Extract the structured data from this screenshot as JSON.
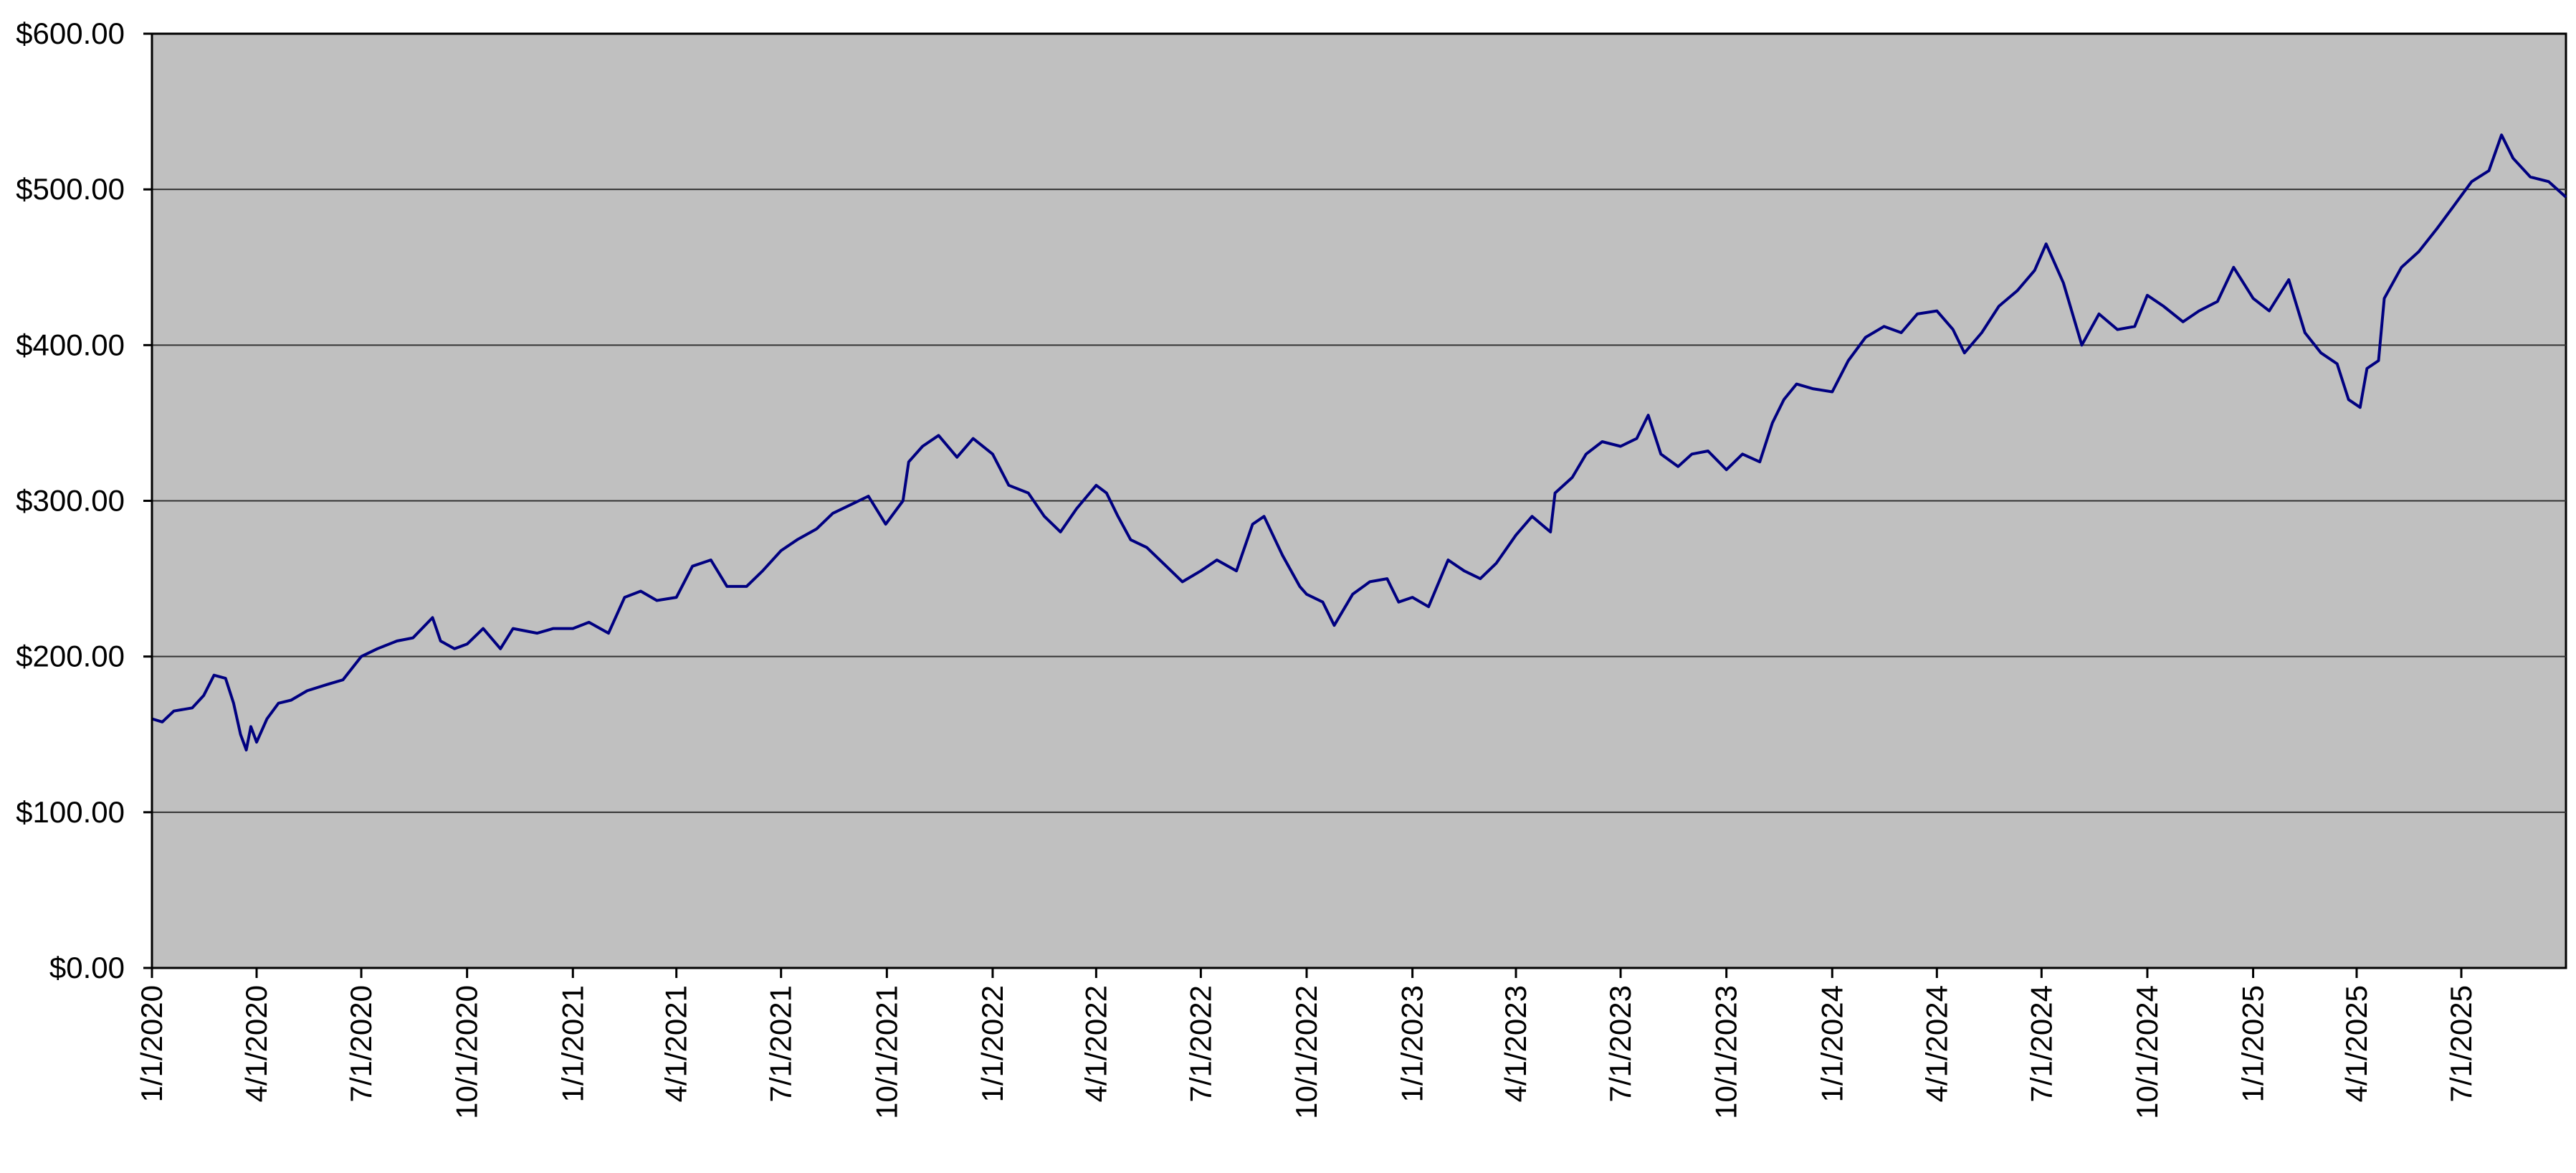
{
  "chart_data": {
    "type": "line",
    "title": "",
    "xlabel": "",
    "ylabel": "",
    "x_axis_type": "date",
    "xlim": [
      "2020-01-01",
      "2025-09-30"
    ],
    "ylim": [
      0,
      600
    ],
    "y_ticks": [
      0,
      100,
      200,
      300,
      400,
      500,
      600
    ],
    "y_tick_labels": [
      "$0.00",
      "$100.00",
      "$200.00",
      "$300.00",
      "$400.00",
      "$500.00",
      "$600.00"
    ],
    "x_tick_dates": [
      "2020-01-01",
      "2020-04-01",
      "2020-07-01",
      "2020-10-01",
      "2021-01-01",
      "2021-04-01",
      "2021-07-01",
      "2021-10-01",
      "2022-01-01",
      "2022-04-01",
      "2022-07-01",
      "2022-10-01",
      "2023-01-01",
      "2023-04-01",
      "2023-07-01",
      "2023-10-01",
      "2024-01-01",
      "2024-04-01",
      "2024-07-01",
      "2024-10-01",
      "2025-01-01",
      "2025-04-01",
      "2025-07-01"
    ],
    "x_tick_labels": [
      "1/1/2020",
      "4/1/2020",
      "7/1/2020",
      "10/1/2020",
      "1/1/2021",
      "4/1/2021",
      "7/1/2021",
      "10/1/2021",
      "1/1/2022",
      "4/1/2022",
      "7/1/2022",
      "10/1/2022",
      "1/1/2023",
      "4/1/2023",
      "7/1/2023",
      "10/1/2023",
      "1/1/2024",
      "4/1/2024",
      "7/1/2024",
      "10/1/2024",
      "1/1/2025",
      "4/1/2025",
      "7/1/2025"
    ],
    "grid": true,
    "legend": false,
    "colors": {
      "plot_background": "#c0c0c0",
      "line": "#000080",
      "gridline": "#333333",
      "axis": "#000000"
    },
    "series": [
      {
        "points": [
          [
            "2020-01-01",
            160
          ],
          [
            "2020-01-10",
            158
          ],
          [
            "2020-01-20",
            165
          ],
          [
            "2020-02-05",
            167
          ],
          [
            "2020-02-15",
            175
          ],
          [
            "2020-02-24",
            188
          ],
          [
            "2020-03-05",
            186
          ],
          [
            "2020-03-12",
            170
          ],
          [
            "2020-03-18",
            150
          ],
          [
            "2020-03-23",
            140
          ],
          [
            "2020-03-27",
            155
          ],
          [
            "2020-04-01",
            145
          ],
          [
            "2020-04-10",
            160
          ],
          [
            "2020-04-20",
            170
          ],
          [
            "2020-05-01",
            172
          ],
          [
            "2020-05-15",
            178
          ],
          [
            "2020-06-01",
            182
          ],
          [
            "2020-06-15",
            185
          ],
          [
            "2020-07-01",
            200
          ],
          [
            "2020-07-15",
            205
          ],
          [
            "2020-08-01",
            210
          ],
          [
            "2020-08-15",
            212
          ],
          [
            "2020-09-01",
            225
          ],
          [
            "2020-09-08",
            210
          ],
          [
            "2020-09-20",
            205
          ],
          [
            "2020-10-01",
            208
          ],
          [
            "2020-10-15",
            218
          ],
          [
            "2020-10-30",
            205
          ],
          [
            "2020-11-10",
            218
          ],
          [
            "2020-12-01",
            215
          ],
          [
            "2020-12-15",
            218
          ],
          [
            "2021-01-01",
            218
          ],
          [
            "2021-01-15",
            222
          ],
          [
            "2021-02-01",
            215
          ],
          [
            "2021-02-15",
            238
          ],
          [
            "2021-03-01",
            242
          ],
          [
            "2021-03-15",
            236
          ],
          [
            "2021-04-01",
            238
          ],
          [
            "2021-04-15",
            258
          ],
          [
            "2021-05-01",
            262
          ],
          [
            "2021-05-15",
            245
          ],
          [
            "2021-06-01",
            245
          ],
          [
            "2021-06-15",
            255
          ],
          [
            "2021-07-01",
            268
          ],
          [
            "2021-07-15",
            275
          ],
          [
            "2021-08-01",
            282
          ],
          [
            "2021-08-15",
            292
          ],
          [
            "2021-09-01",
            298
          ],
          [
            "2021-09-15",
            303
          ],
          [
            "2021-09-30",
            285
          ],
          [
            "2021-10-15",
            300
          ],
          [
            "2021-10-20",
            325
          ],
          [
            "2021-11-01",
            335
          ],
          [
            "2021-11-15",
            342
          ],
          [
            "2021-12-01",
            328
          ],
          [
            "2021-12-15",
            340
          ],
          [
            "2022-01-01",
            330
          ],
          [
            "2022-01-15",
            310
          ],
          [
            "2022-02-01",
            305
          ],
          [
            "2022-02-15",
            290
          ],
          [
            "2022-03-01",
            280
          ],
          [
            "2022-03-15",
            295
          ],
          [
            "2022-04-01",
            310
          ],
          [
            "2022-04-10",
            305
          ],
          [
            "2022-04-20",
            290
          ],
          [
            "2022-05-01",
            275
          ],
          [
            "2022-05-15",
            270
          ],
          [
            "2022-06-01",
            258
          ],
          [
            "2022-06-15",
            248
          ],
          [
            "2022-07-01",
            255
          ],
          [
            "2022-07-15",
            262
          ],
          [
            "2022-08-01",
            255
          ],
          [
            "2022-08-15",
            285
          ],
          [
            "2022-08-25",
            290
          ],
          [
            "2022-09-10",
            265
          ],
          [
            "2022-09-25",
            245
          ],
          [
            "2022-10-01",
            240
          ],
          [
            "2022-10-15",
            235
          ],
          [
            "2022-10-25",
            220
          ],
          [
            "2022-11-10",
            240
          ],
          [
            "2022-11-25",
            248
          ],
          [
            "2022-12-10",
            250
          ],
          [
            "2022-12-20",
            235
          ],
          [
            "2023-01-01",
            238
          ],
          [
            "2023-01-15",
            232
          ],
          [
            "2023-02-01",
            262
          ],
          [
            "2023-02-15",
            255
          ],
          [
            "2023-03-01",
            250
          ],
          [
            "2023-03-15",
            260
          ],
          [
            "2023-04-01",
            278
          ],
          [
            "2023-04-15",
            290
          ],
          [
            "2023-05-01",
            280
          ],
          [
            "2023-05-05",
            305
          ],
          [
            "2023-05-20",
            315
          ],
          [
            "2023-06-01",
            330
          ],
          [
            "2023-06-15",
            338
          ],
          [
            "2023-07-01",
            335
          ],
          [
            "2023-07-15",
            340
          ],
          [
            "2023-07-25",
            355
          ],
          [
            "2023-08-05",
            330
          ],
          [
            "2023-08-20",
            322
          ],
          [
            "2023-09-01",
            330
          ],
          [
            "2023-09-15",
            332
          ],
          [
            "2023-10-01",
            320
          ],
          [
            "2023-10-15",
            330
          ],
          [
            "2023-10-30",
            325
          ],
          [
            "2023-11-10",
            350
          ],
          [
            "2023-11-20",
            365
          ],
          [
            "2023-12-01",
            375
          ],
          [
            "2023-12-15",
            372
          ],
          [
            "2024-01-01",
            370
          ],
          [
            "2024-01-15",
            390
          ],
          [
            "2024-01-30",
            405
          ],
          [
            "2024-02-15",
            412
          ],
          [
            "2024-03-01",
            408
          ],
          [
            "2024-03-15",
            420
          ],
          [
            "2024-04-01",
            422
          ],
          [
            "2024-04-15",
            410
          ],
          [
            "2024-04-25",
            395
          ],
          [
            "2024-05-10",
            408
          ],
          [
            "2024-05-25",
            425
          ],
          [
            "2024-06-10",
            435
          ],
          [
            "2024-06-25",
            448
          ],
          [
            "2024-07-05",
            465
          ],
          [
            "2024-07-20",
            440
          ],
          [
            "2024-08-05",
            400
          ],
          [
            "2024-08-20",
            420
          ],
          [
            "2024-09-05",
            410
          ],
          [
            "2024-09-20",
            412
          ],
          [
            "2024-10-01",
            432
          ],
          [
            "2024-10-15",
            425
          ],
          [
            "2024-11-01",
            415
          ],
          [
            "2024-11-15",
            422
          ],
          [
            "2024-12-01",
            428
          ],
          [
            "2024-12-15",
            450
          ],
          [
            "2025-01-01",
            430
          ],
          [
            "2025-01-15",
            422
          ],
          [
            "2025-02-01",
            442
          ],
          [
            "2025-02-15",
            408
          ],
          [
            "2025-03-01",
            395
          ],
          [
            "2025-03-15",
            388
          ],
          [
            "2025-03-25",
            365
          ],
          [
            "2025-04-04",
            360
          ],
          [
            "2025-04-10",
            385
          ],
          [
            "2025-04-20",
            390
          ],
          [
            "2025-04-25",
            430
          ],
          [
            "2025-05-10",
            450
          ],
          [
            "2025-05-25",
            460
          ],
          [
            "2025-06-10",
            475
          ],
          [
            "2025-06-25",
            490
          ],
          [
            "2025-07-10",
            505
          ],
          [
            "2025-07-25",
            512
          ],
          [
            "2025-08-05",
            535
          ],
          [
            "2025-08-15",
            520
          ],
          [
            "2025-08-30",
            508
          ],
          [
            "2025-09-15",
            505
          ],
          [
            "2025-09-30",
            495
          ]
        ]
      }
    ]
  }
}
